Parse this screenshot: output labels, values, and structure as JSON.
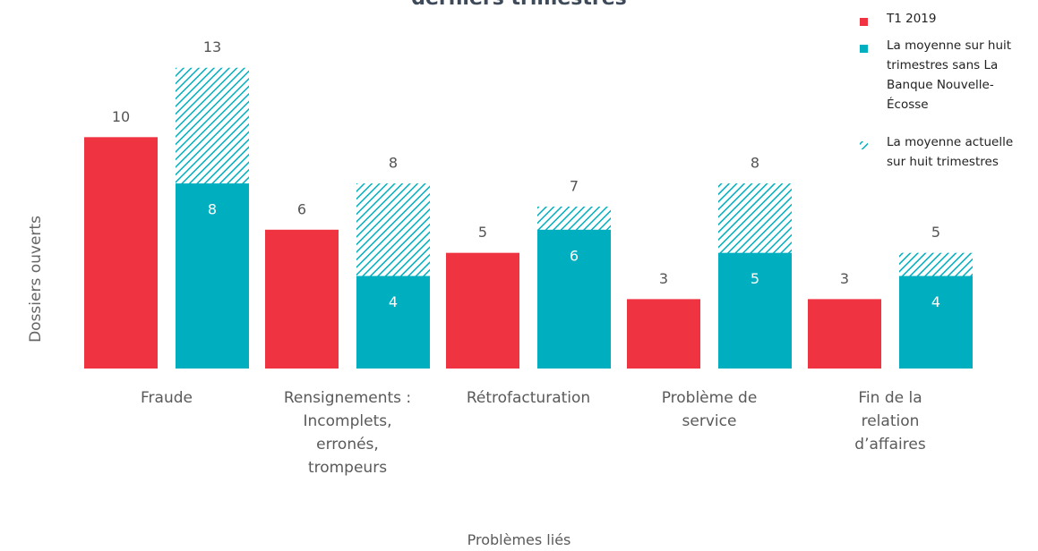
{
  "chart_data": {
    "type": "bar",
    "title": "derniers trimestres",
    "x_label": "Problèmes liés",
    "y_label": "Dossiers ouverts",
    "categories": [
      "Fraude",
      "Rensignements : Incomplets, erronés, trompeurs",
      "Rétrofacturation",
      "Problème de service",
      "Fin de la relation d’affaires"
    ],
    "series": [
      {
        "name": "T1 2019",
        "color": "#ef3340",
        "values": [
          10,
          6,
          5,
          3,
          3
        ]
      },
      {
        "name": "La moyenne sur huit trimestres sans La Banque Nouvelle-Écosse",
        "color": "#00afbf",
        "values": [
          8,
          4,
          6,
          5,
          4
        ]
      },
      {
        "name": "La moyenne actuelle sur huit trimestres",
        "color": "#00afbf",
        "pattern": "hatch",
        "values": [
          13,
          8,
          7,
          8,
          5
        ]
      }
    ],
    "ylim": [
      0,
      15
    ],
    "legend": "top-right"
  }
}
